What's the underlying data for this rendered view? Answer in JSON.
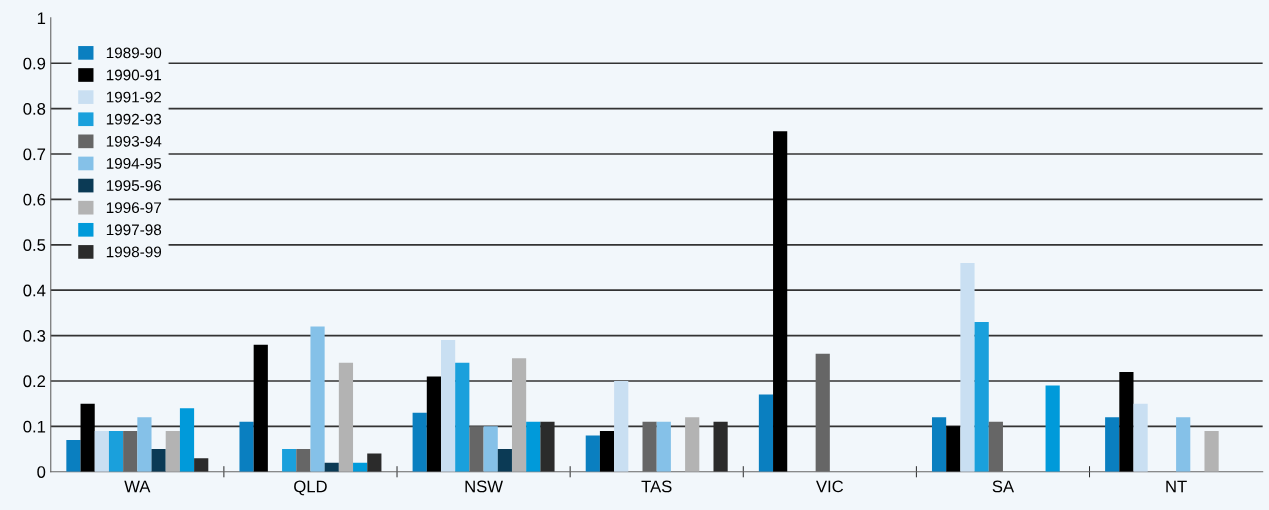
{
  "chart_data": {
    "type": "bar",
    "categories": [
      "WA",
      "QLD",
      "NSW",
      "TAS",
      "VIC",
      "SA",
      "NT"
    ],
    "series": [
      {
        "name": "1989-90",
        "color": "#0a7fc0",
        "values": [
          0.07,
          0.11,
          0.13,
          0.08,
          0.17,
          0.12,
          0.12
        ]
      },
      {
        "name": "1990-91",
        "color": "#000000",
        "values": [
          0.15,
          0.28,
          0.21,
          0.09,
          0.75,
          0.1,
          0.22
        ]
      },
      {
        "name": "1991-92",
        "color": "#c9dff2",
        "values": [
          0.09,
          0,
          0.29,
          0.2,
          0,
          0.46,
          0.15
        ]
      },
      {
        "name": "1992-93",
        "color": "#1aa0dc",
        "values": [
          0.09,
          0.05,
          0.24,
          0,
          0,
          0.33,
          0
        ]
      },
      {
        "name": "1993-94",
        "color": "#666666",
        "values": [
          0.09,
          0.05,
          0.1,
          0.11,
          0.26,
          0.11,
          0
        ]
      },
      {
        "name": "1994-95",
        "color": "#85c1e8",
        "values": [
          0.12,
          0.32,
          0.1,
          0.11,
          0,
          0,
          0.12
        ]
      },
      {
        "name": "1995-96",
        "color": "#0b3a55",
        "values": [
          0.05,
          0.02,
          0.05,
          0,
          0,
          0,
          0
        ]
      },
      {
        "name": "1996-97",
        "color": "#b3b3b3",
        "values": [
          0.09,
          0.24,
          0.25,
          0.12,
          0,
          0,
          0.09
        ]
      },
      {
        "name": "1997-98",
        "color": "#009ada",
        "values": [
          0.14,
          0.02,
          0.11,
          0,
          0,
          0.19,
          0
        ]
      },
      {
        "name": "1998-99",
        "color": "#2b2b2b",
        "values": [
          0.03,
          0.04,
          0.11,
          0.11,
          0,
          0,
          0
        ]
      }
    ],
    "ylim": [
      0,
      1
    ],
    "yticks": [
      0,
      {
        "value": 0.1,
        "label": "0.1"
      },
      {
        "value": 0.2,
        "label": "0.2"
      },
      {
        "value": 0.3,
        "label": "0.3"
      },
      {
        "value": 0.4,
        "label": "0.4"
      },
      {
        "value": 0.5,
        "label": "0.5"
      },
      {
        "value": 0.6,
        "label": "0.6"
      },
      {
        "value": 0.7,
        "label": "0.7"
      },
      {
        "value": 0.8,
        "label": "0.8"
      },
      {
        "value": 0.9,
        "label": "0.9"
      },
      1
    ],
    "grid": "y",
    "legend": "top left"
  }
}
